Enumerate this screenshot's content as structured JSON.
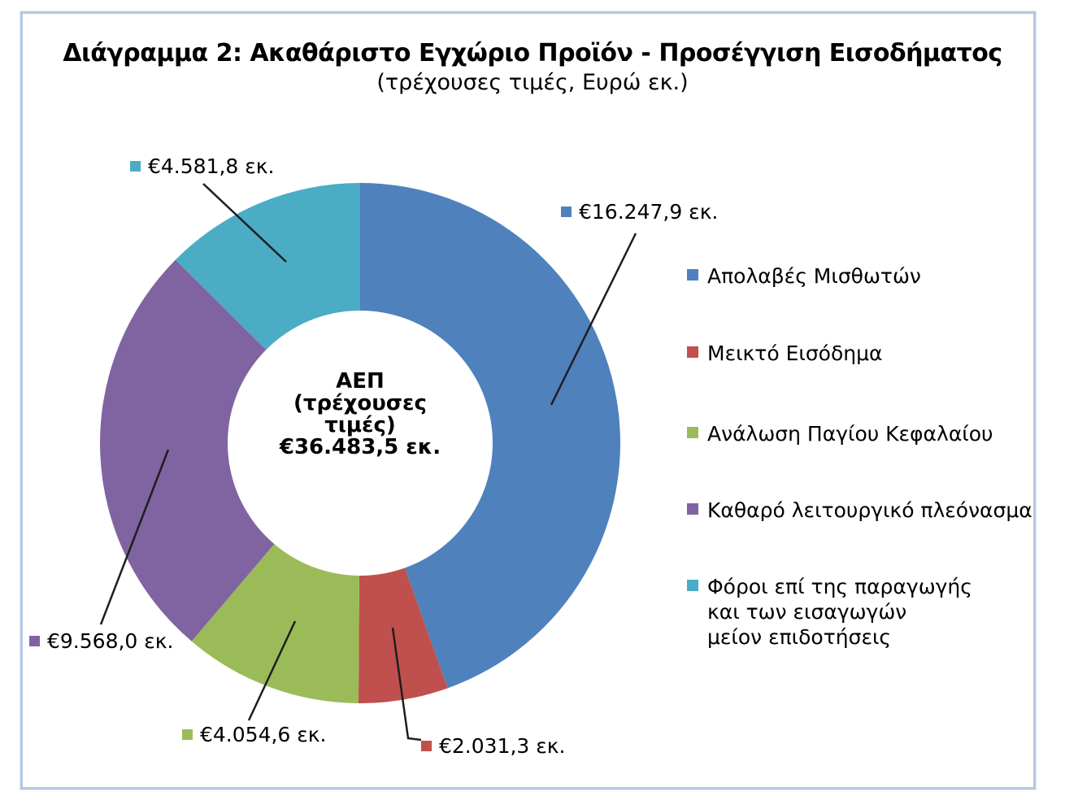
{
  "figure": {
    "title": "Διάγραμμα 2: Ακαθάριστο Εγχώριο Προϊόν - Προσέγγιση Εισοδήματος",
    "subtitle": "(τρέχουσες τιμές, Ευρώ εκ.)"
  },
  "chart_data": {
    "type": "pie",
    "subtype": "donut",
    "title": "Διάγραμμα 2: Ακαθάριστο Εγχώριο Προϊόν - Προσέγγιση Εισοδήματος",
    "subtitle": "(τρέχουσες τιμές, Ευρώ εκ.)",
    "units": "Ευρώ εκ.",
    "direction": "clockwise",
    "start_angle_deg": 0,
    "legend_position": "right",
    "center_label_lines": [
      "ΑΕΠ",
      "(τρέχουσες",
      "τιμές)",
      "€36.483,5 εκ."
    ],
    "total_value": 36483.5,
    "total_value_label": "€36.483,5 εκ.",
    "series": [
      {
        "name": "Απολαβές Μισθωτών",
        "value": 16247.9,
        "value_label": "€16.247,9 εκ.",
        "color": "#4F81BD"
      },
      {
        "name": "Μεικτό Εισόδημα",
        "value": 2031.3,
        "value_label": "€2.031,3 εκ.",
        "color": "#C0504D"
      },
      {
        "name": "Ανάλωση Παγίου Κεφαλαίου",
        "value": 4054.6,
        "value_label": "€4.054,6 εκ.",
        "color": "#9BBB59"
      },
      {
        "name": "Καθαρό λειτουργικό πλεόνασμα",
        "value": 9568.0,
        "value_label": "€9.568,0 εκ.",
        "color": "#8064A2"
      },
      {
        "name": "Φόροι επί της παραγωγής και των εισαγωγών μείον επιδοτήσεις",
        "value": 4581.8,
        "value_label": "€4.581,8 εκ.",
        "color": "#4BACC6"
      }
    ],
    "legend": [
      {
        "lines": [
          "Απολαβές Μισθωτών"
        ],
        "color": "#4F81BD"
      },
      {
        "lines": [
          "Μεικτό Εισόδημα"
        ],
        "color": "#C0504D"
      },
      {
        "lines": [
          "Ανάλωση Παγίου Κεφαλαίου"
        ],
        "color": "#9BBB59"
      },
      {
        "lines": [
          "Καθαρό λειτουργικό πλεόνασμα"
        ],
        "color": "#8064A2"
      },
      {
        "lines": [
          "Φόροι επί της παραγωγής",
          "και των εισαγωγών",
          "μείον επιδοτήσεις"
        ],
        "color": "#4BACC6"
      }
    ]
  }
}
